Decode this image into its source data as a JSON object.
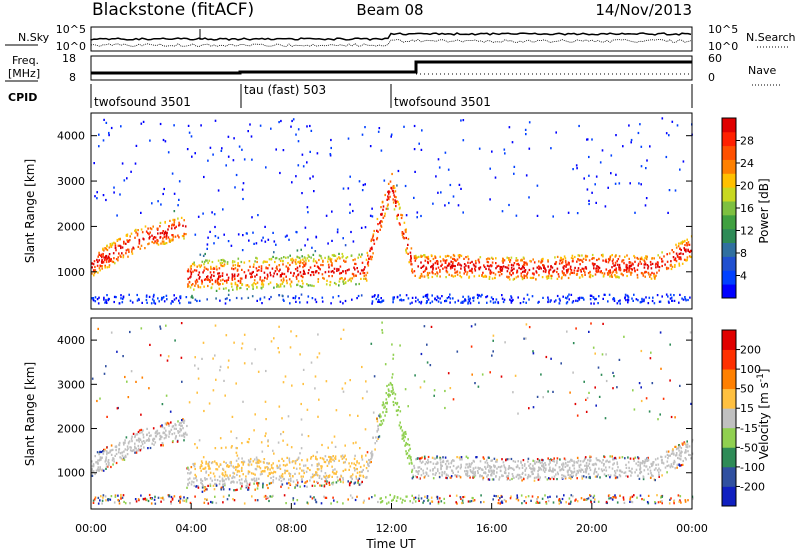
{
  "header": {
    "station": "Blackstone (fitACF)",
    "beam": "Beam 08",
    "date": "14/Nov/2013"
  },
  "noise_panel": {
    "left_label": "N.Sky",
    "right_label": "N.Search",
    "left_ticks": [
      "10^5",
      "10^0"
    ],
    "right_ticks": [
      "10^5",
      "10^0"
    ]
  },
  "freq_panel": {
    "left_label_1": "Freq.",
    "left_label_2": "[MHz]",
    "right_label": "Nave",
    "left_ticks": [
      "18",
      "8"
    ],
    "right_ticks": [
      "60",
      "0"
    ]
  },
  "cpid": {
    "label": "CPID",
    "segments": [
      {
        "name": "twofsound 3501",
        "start_hour": 0,
        "end_hour": 6
      },
      {
        "name": "tau (fast) 503",
        "start_hour": 6,
        "end_hour": 12
      },
      {
        "name": "twofsound 3501",
        "start_hour": 12,
        "end_hour": 24
      }
    ]
  },
  "chart_data": [
    {
      "type": "heatmap",
      "name": "power",
      "ylabel": "Slant Range [km]",
      "xlim_hours": [
        0,
        24
      ],
      "ylim": [
        180,
        4500
      ],
      "yticks": [
        1000,
        2000,
        3000,
        4000
      ],
      "colorbar_label": "Power [dB]",
      "colorbar_ticks": [
        "28",
        "24",
        "20",
        "16",
        "12",
        "8",
        "4"
      ],
      "colorbar_colors": [
        "#0000ff",
        "#0040ff",
        "#2050d0",
        "#3070a0",
        "#2e8b57",
        "#40a040",
        "#7ec040",
        "#c8d820",
        "#ffc000",
        "#ff8000",
        "#ff5000",
        "#ff2000",
        "#e00000"
      ],
      "scatter_features": [
        {
          "hours": [
            0.2,
            1.2,
            2.2
          ],
          "range": [
            1200,
            1600,
            1900
          ]
        },
        {
          "hours": [
            4.0,
            8.0,
            11.0
          ],
          "range": [
            900,
            1000,
            1100
          ]
        },
        {
          "hours": [
            13.0,
            18.0,
            23.0
          ],
          "range": [
            1100,
            1150,
            1300
          ]
        }
      ]
    },
    {
      "type": "heatmap",
      "name": "velocity",
      "ylabel": "Slant Range [km]",
      "xlabel": "Time UT",
      "xlim_hours": [
        0,
        24
      ],
      "ylim": [
        180,
        4500
      ],
      "yticks": [
        1000,
        2000,
        3000,
        4000
      ],
      "xticks": [
        "00:00",
        "04:00",
        "08:00",
        "12:00",
        "16:00",
        "20:00",
        "00:00"
      ],
      "colorbar_label_base": "Velocity [m s",
      "colorbar_label_exp": "-1",
      "colorbar_label_close": "]",
      "colorbar_ticks": [
        "200",
        "100",
        "50",
        "15",
        "-15",
        "-50",
        "-100",
        "-200"
      ],
      "colorbar_colors": [
        "#1020c0",
        "#3050a0",
        "#2e8b57",
        "#90d050",
        "#c0c0c0",
        "#ffc040",
        "#ff8000",
        "#ff3000",
        "#e00000"
      ]
    }
  ]
}
